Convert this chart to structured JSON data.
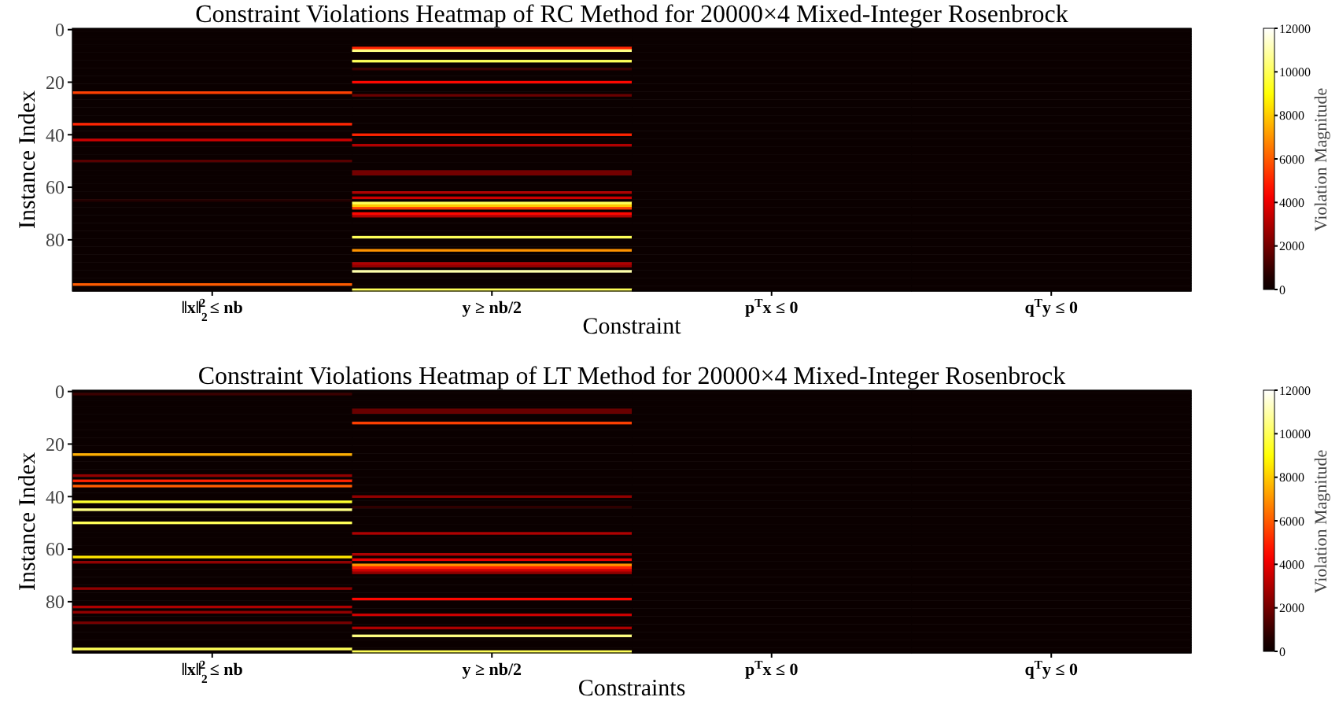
{
  "chart_data": [
    {
      "type": "heatmap",
      "title": "Constraint Violations Heatmap of RC Method for 20000×4 Mixed-Integer Rosenbrock",
      "xlabel": "Constraint",
      "ylabel": "Instance Index",
      "clabel": "Violation Magnitude",
      "categories": [
        "‖x‖$_{2}$$^{2}$ ≤ nb",
        "y ≥ nb/2",
        "p$^{T}$x ≤ 0",
        "q$^{T}$y ≤ 0"
      ],
      "y_categories": [
        "0",
        null,
        null,
        null,
        null,
        null,
        null,
        null,
        null,
        null,
        null,
        null,
        null,
        null,
        null,
        null,
        null,
        null,
        null,
        null,
        "20",
        null,
        null,
        null,
        null,
        null,
        null,
        null,
        null,
        null,
        null,
        null,
        null,
        null,
        null,
        null,
        null,
        null,
        null,
        null,
        "40",
        null,
        null,
        null,
        null,
        null,
        null,
        null,
        null,
        null,
        null,
        null,
        null,
        null,
        null,
        null,
        null,
        null,
        null,
        null,
        "60",
        null,
        null,
        null,
        null,
        null,
        null,
        null,
        null,
        null,
        null,
        null,
        null,
        null,
        null,
        null,
        null,
        null,
        null,
        null,
        "80",
        null,
        null,
        null,
        null,
        null,
        null,
        null,
        null,
        null,
        null,
        null,
        null,
        null,
        null,
        null,
        null,
        null,
        null,
        null
      ],
      "clim": [
        0,
        12000
      ],
      "cticks": [
        0,
        2000,
        4000,
        6000,
        8000,
        10000,
        12000
      ],
      "cells": [
        [
          0,
          0,
          0,
          0
        ],
        [
          0,
          0,
          0,
          0
        ],
        [
          0,
          0,
          0,
          0
        ],
        [
          0,
          0,
          0,
          0
        ],
        [
          0,
          0,
          0,
          0
        ],
        [
          0,
          0,
          0,
          0
        ],
        [
          0,
          0,
          0,
          0
        ],
        [
          0,
          5000,
          0,
          0
        ],
        [
          0,
          10500,
          0,
          0
        ],
        [
          0,
          0,
          0,
          0
        ],
        [
          0,
          0,
          0,
          0
        ],
        [
          0,
          0,
          0,
          0
        ],
        [
          0,
          10000,
          0,
          0
        ],
        [
          0,
          0,
          0,
          0
        ],
        [
          0,
          0,
          0,
          0
        ],
        [
          0,
          1000,
          0,
          0
        ],
        [
          0,
          0,
          0,
          0
        ],
        [
          0,
          0,
          0,
          0
        ],
        [
          0,
          0,
          0,
          0
        ],
        [
          0,
          0,
          0,
          0
        ],
        [
          0,
          4500,
          0,
          0
        ],
        [
          0,
          0,
          0,
          0
        ],
        [
          0,
          0,
          0,
          0
        ],
        [
          0,
          0,
          0,
          0
        ],
        [
          5500,
          0,
          0,
          0
        ],
        [
          0,
          1800,
          0,
          0
        ],
        [
          0,
          0,
          0,
          0
        ],
        [
          0,
          0,
          0,
          0
        ],
        [
          0,
          0,
          0,
          0
        ],
        [
          0,
          0,
          0,
          0
        ],
        [
          0,
          0,
          0,
          0
        ],
        [
          0,
          0,
          0,
          0
        ],
        [
          0,
          0,
          0,
          0
        ],
        [
          0,
          0,
          0,
          0
        ],
        [
          0,
          0,
          0,
          0
        ],
        [
          0,
          0,
          0,
          0
        ],
        [
          5000,
          0,
          0,
          0
        ],
        [
          0,
          0,
          0,
          0
        ],
        [
          0,
          0,
          0,
          0
        ],
        [
          0,
          0,
          0,
          0
        ],
        [
          0,
          5000,
          0,
          0
        ],
        [
          0,
          0,
          0,
          0
        ],
        [
          3500,
          0,
          0,
          0
        ],
        [
          0,
          0,
          0,
          0
        ],
        [
          0,
          3000,
          0,
          0
        ],
        [
          0,
          0,
          0,
          0
        ],
        [
          0,
          0,
          0,
          0
        ],
        [
          0,
          0,
          0,
          0
        ],
        [
          0,
          0,
          0,
          0
        ],
        [
          0,
          0,
          0,
          0
        ],
        [
          1500,
          0,
          0,
          0
        ],
        [
          0,
          0,
          0,
          0
        ],
        [
          0,
          0,
          0,
          0
        ],
        [
          0,
          0,
          0,
          0
        ],
        [
          0,
          2000,
          0,
          0
        ],
        [
          0,
          2000,
          0,
          0
        ],
        [
          0,
          0,
          0,
          0
        ],
        [
          0,
          0,
          0,
          0
        ],
        [
          0,
          0,
          0,
          0
        ],
        [
          0,
          0,
          0,
          0
        ],
        [
          0,
          0,
          0,
          0
        ],
        [
          0,
          0,
          0,
          0
        ],
        [
          0,
          3000,
          0,
          0
        ],
        [
          0,
          0,
          0,
          0
        ],
        [
          0,
          3500,
          0,
          0
        ],
        [
          600,
          0,
          0,
          0
        ],
        [
          0,
          10000,
          0,
          0
        ],
        [
          0,
          8000,
          0,
          0
        ],
        [
          0,
          5500,
          0,
          0
        ],
        [
          0,
          0,
          0,
          0
        ],
        [
          0,
          4500,
          0,
          0
        ],
        [
          0,
          3000,
          0,
          0
        ],
        [
          0,
          0,
          0,
          0
        ],
        [
          0,
          0,
          0,
          0
        ],
        [
          0,
          0,
          0,
          0
        ],
        [
          0,
          0,
          0,
          0
        ],
        [
          0,
          0,
          0,
          0
        ],
        [
          0,
          0,
          0,
          0
        ],
        [
          0,
          0,
          0,
          0
        ],
        [
          0,
          10000,
          0,
          0
        ],
        [
          0,
          0,
          0,
          0
        ],
        [
          0,
          0,
          0,
          0
        ],
        [
          0,
          0,
          0,
          0
        ],
        [
          0,
          0,
          0,
          0
        ],
        [
          0,
          7000,
          0,
          0
        ],
        [
          0,
          0,
          0,
          0
        ],
        [
          0,
          0,
          0,
          0
        ],
        [
          0,
          0,
          0,
          0
        ],
        [
          0,
          0,
          0,
          0
        ],
        [
          0,
          3000,
          0,
          0
        ],
        [
          0,
          2500,
          0,
          0
        ],
        [
          0,
          0,
          0,
          0
        ],
        [
          0,
          11000,
          0,
          0
        ],
        [
          0,
          0,
          0,
          0
        ],
        [
          0,
          0,
          0,
          0
        ],
        [
          0,
          0,
          0,
          0
        ],
        [
          0,
          0,
          0,
          0
        ],
        [
          6000,
          0,
          0,
          0
        ],
        [
          0,
          0,
          0,
          0
        ],
        [
          0,
          10000,
          0,
          0
        ]
      ]
    },
    {
      "type": "heatmap",
      "title": "Constraint Violations Heatmap of LT Method for 20000×4 Mixed-Integer Rosenbrock",
      "xlabel": "Constraints",
      "ylabel": "Instance Index",
      "clabel": "Violation Magnitude",
      "categories": [
        "‖x‖$_{2}$$^{2}$ ≤ nb",
        "y ≥ nb/2",
        "p$^{T}$x ≤ 0",
        "q$^{T}$y ≤ 0"
      ],
      "y_categories": [
        "0",
        null,
        null,
        null,
        null,
        null,
        null,
        null,
        null,
        null,
        null,
        null,
        null,
        null,
        null,
        null,
        null,
        null,
        null,
        null,
        "20",
        null,
        null,
        null,
        null,
        null,
        null,
        null,
        null,
        null,
        null,
        null,
        null,
        null,
        null,
        null,
        null,
        null,
        null,
        null,
        "40",
        null,
        null,
        null,
        null,
        null,
        null,
        null,
        null,
        null,
        null,
        null,
        null,
        null,
        null,
        null,
        null,
        null,
        null,
        null,
        "60",
        null,
        null,
        null,
        null,
        null,
        null,
        null,
        null,
        null,
        null,
        null,
        null,
        null,
        null,
        null,
        null,
        null,
        null,
        null,
        "80",
        null,
        null,
        null,
        null,
        null,
        null,
        null,
        null,
        null,
        null,
        null,
        null,
        null,
        null,
        null,
        null,
        null,
        null,
        null
      ],
      "clim": [
        0,
        12000
      ],
      "cticks": [
        0,
        2000,
        4000,
        6000,
        8000,
        10000,
        12000
      ],
      "cells": [
        [
          0,
          0,
          0,
          0
        ],
        [
          1000,
          0,
          0,
          0
        ],
        [
          0,
          0,
          0,
          0
        ],
        [
          0,
          0,
          0,
          0
        ],
        [
          0,
          0,
          0,
          0
        ],
        [
          0,
          0,
          0,
          0
        ],
        [
          0,
          0,
          0,
          0
        ],
        [
          0,
          1800,
          0,
          0
        ],
        [
          0,
          1800,
          0,
          0
        ],
        [
          0,
          0,
          0,
          0
        ],
        [
          0,
          0,
          0,
          0
        ],
        [
          0,
          0,
          0,
          0
        ],
        [
          0,
          5500,
          0,
          0
        ],
        [
          0,
          0,
          0,
          0
        ],
        [
          0,
          0,
          0,
          0
        ],
        [
          0,
          0,
          0,
          0
        ],
        [
          0,
          0,
          0,
          0
        ],
        [
          0,
          0,
          0,
          0
        ],
        [
          0,
          0,
          0,
          0
        ],
        [
          0,
          0,
          0,
          0
        ],
        [
          0,
          0,
          0,
          0
        ],
        [
          0,
          0,
          0,
          0
        ],
        [
          0,
          0,
          0,
          0
        ],
        [
          0,
          0,
          0,
          0
        ],
        [
          7500,
          0,
          0,
          0
        ],
        [
          0,
          0,
          0,
          0
        ],
        [
          0,
          0,
          0,
          0
        ],
        [
          0,
          0,
          0,
          0
        ],
        [
          0,
          0,
          0,
          0
        ],
        [
          0,
          0,
          0,
          0
        ],
        [
          0,
          0,
          0,
          0
        ],
        [
          0,
          0,
          0,
          0
        ],
        [
          2500,
          0,
          0,
          0
        ],
        [
          0,
          0,
          0,
          0
        ],
        [
          5000,
          0,
          0,
          0
        ],
        [
          0,
          0,
          0,
          0
        ],
        [
          6000,
          0,
          0,
          0
        ],
        [
          0,
          0,
          0,
          0
        ],
        [
          0,
          0,
          0,
          0
        ],
        [
          0,
          0,
          0,
          0
        ],
        [
          0,
          2500,
          0,
          0
        ],
        [
          0,
          0,
          0,
          0
        ],
        [
          9500,
          0,
          0,
          0
        ],
        [
          0,
          0,
          0,
          0
        ],
        [
          0,
          800,
          0,
          0
        ],
        [
          10500,
          0,
          0,
          0
        ],
        [
          0,
          0,
          0,
          0
        ],
        [
          0,
          0,
          0,
          0
        ],
        [
          0,
          0,
          0,
          0
        ],
        [
          0,
          0,
          0,
          0
        ],
        [
          10000,
          0,
          0,
          0
        ],
        [
          0,
          0,
          0,
          0
        ],
        [
          0,
          0,
          0,
          0
        ],
        [
          0,
          0,
          0,
          0
        ],
        [
          0,
          3000,
          0,
          0
        ],
        [
          0,
          0,
          0,
          0
        ],
        [
          0,
          0,
          0,
          0
        ],
        [
          0,
          0,
          0,
          0
        ],
        [
          0,
          0,
          0,
          0
        ],
        [
          0,
          0,
          0,
          0
        ],
        [
          0,
          0,
          0,
          0
        ],
        [
          0,
          0,
          0,
          0
        ],
        [
          0,
          3000,
          0,
          0
        ],
        [
          8500,
          0,
          0,
          0
        ],
        [
          0,
          4000,
          0,
          0
        ],
        [
          2500,
          0,
          0,
          0
        ],
        [
          0,
          7000,
          0,
          0
        ],
        [
          0,
          5000,
          0,
          0
        ],
        [
          0,
          3500,
          0,
          0
        ],
        [
          0,
          2500,
          0,
          0
        ],
        [
          0,
          0,
          0,
          0
        ],
        [
          0,
          0,
          0,
          0
        ],
        [
          0,
          0,
          0,
          0
        ],
        [
          0,
          0,
          0,
          0
        ],
        [
          0,
          0,
          0,
          0
        ],
        [
          2500,
          0,
          0,
          0
        ],
        [
          0,
          0,
          0,
          0
        ],
        [
          0,
          0,
          0,
          0
        ],
        [
          0,
          0,
          0,
          0
        ],
        [
          0,
          4500,
          0,
          0
        ],
        [
          0,
          0,
          0,
          0
        ],
        [
          0,
          0,
          0,
          0
        ],
        [
          3000,
          0,
          0,
          0
        ],
        [
          0,
          0,
          0,
          0
        ],
        [
          2500,
          0,
          0,
          0
        ],
        [
          0,
          3500,
          0,
          0
        ],
        [
          0,
          0,
          0,
          0
        ],
        [
          0,
          0,
          0,
          0
        ],
        [
          2000,
          0,
          0,
          0
        ],
        [
          0,
          0,
          0,
          0
        ],
        [
          0,
          3000,
          0,
          0
        ],
        [
          0,
          0,
          0,
          0
        ],
        [
          0,
          0,
          0,
          0
        ],
        [
          0,
          10500,
          0,
          0
        ],
        [
          0,
          0,
          0,
          0
        ],
        [
          0,
          0,
          0,
          0
        ],
        [
          0,
          0,
          0,
          0
        ],
        [
          0,
          0,
          0,
          0
        ],
        [
          10000,
          0,
          0,
          0
        ],
        [
          0,
          10000,
          0,
          0
        ]
      ]
    }
  ]
}
